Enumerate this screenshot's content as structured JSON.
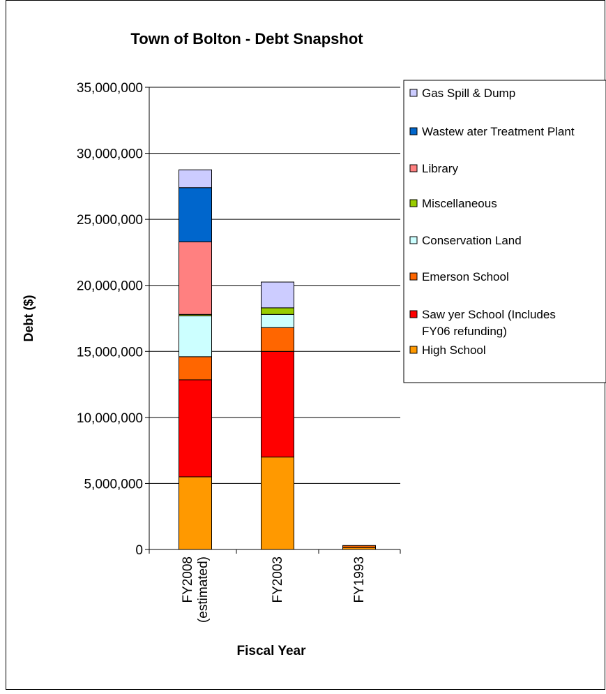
{
  "chart_data": {
    "type": "bar",
    "stacked": true,
    "title": "Town of Bolton - Debt Snapshot",
    "xlabel": "Fiscal Year",
    "ylabel": "Debt ($)",
    "ylim": [
      0,
      35000000
    ],
    "yticks": [
      0,
      5000000,
      10000000,
      15000000,
      20000000,
      25000000,
      30000000,
      35000000
    ],
    "ytick_labels": [
      "0",
      "5,000,000",
      "10,000,000",
      "15,000,000",
      "20,000,000",
      "25,000,000",
      "30,000,000",
      "35,000,000"
    ],
    "grid": true,
    "legend_position": "right",
    "categories": [
      {
        "line1": "FY2008",
        "line2": "(estimated)"
      },
      {
        "line1": "FY2003",
        "line2": ""
      },
      {
        "line1": "FY1993",
        "line2": ""
      }
    ],
    "series": [
      {
        "name": "High School",
        "color": "#FF9900",
        "values": [
          5500000,
          7000000,
          150000
        ]
      },
      {
        "name": "Saw yer School (Includes FY06 refunding)",
        "legend_line1": "Saw yer School (Includes",
        "legend_line2": "FY06 refunding)",
        "color": "#FF0000",
        "values": [
          7350000,
          8000000,
          0
        ]
      },
      {
        "name": "Emerson School",
        "color": "#FF6600",
        "values": [
          1750000,
          1800000,
          150000
        ]
      },
      {
        "name": "Conservation Land",
        "color": "#CCFFFF",
        "values": [
          3100000,
          1000000,
          0
        ]
      },
      {
        "name": "Miscellaneous",
        "color": "#99CC00",
        "values": [
          100000,
          500000,
          0
        ]
      },
      {
        "name": "Library",
        "color": "#FF8080",
        "values": [
          5500000,
          0,
          0
        ]
      },
      {
        "name": "Wastew ater Treatment Plant",
        "color": "#0066CC",
        "values": [
          4100000,
          0,
          0
        ]
      },
      {
        "name": "Gas Spill & Dump",
        "color": "#CCCCFF",
        "values": [
          1350000,
          1950000,
          0
        ]
      }
    ]
  }
}
